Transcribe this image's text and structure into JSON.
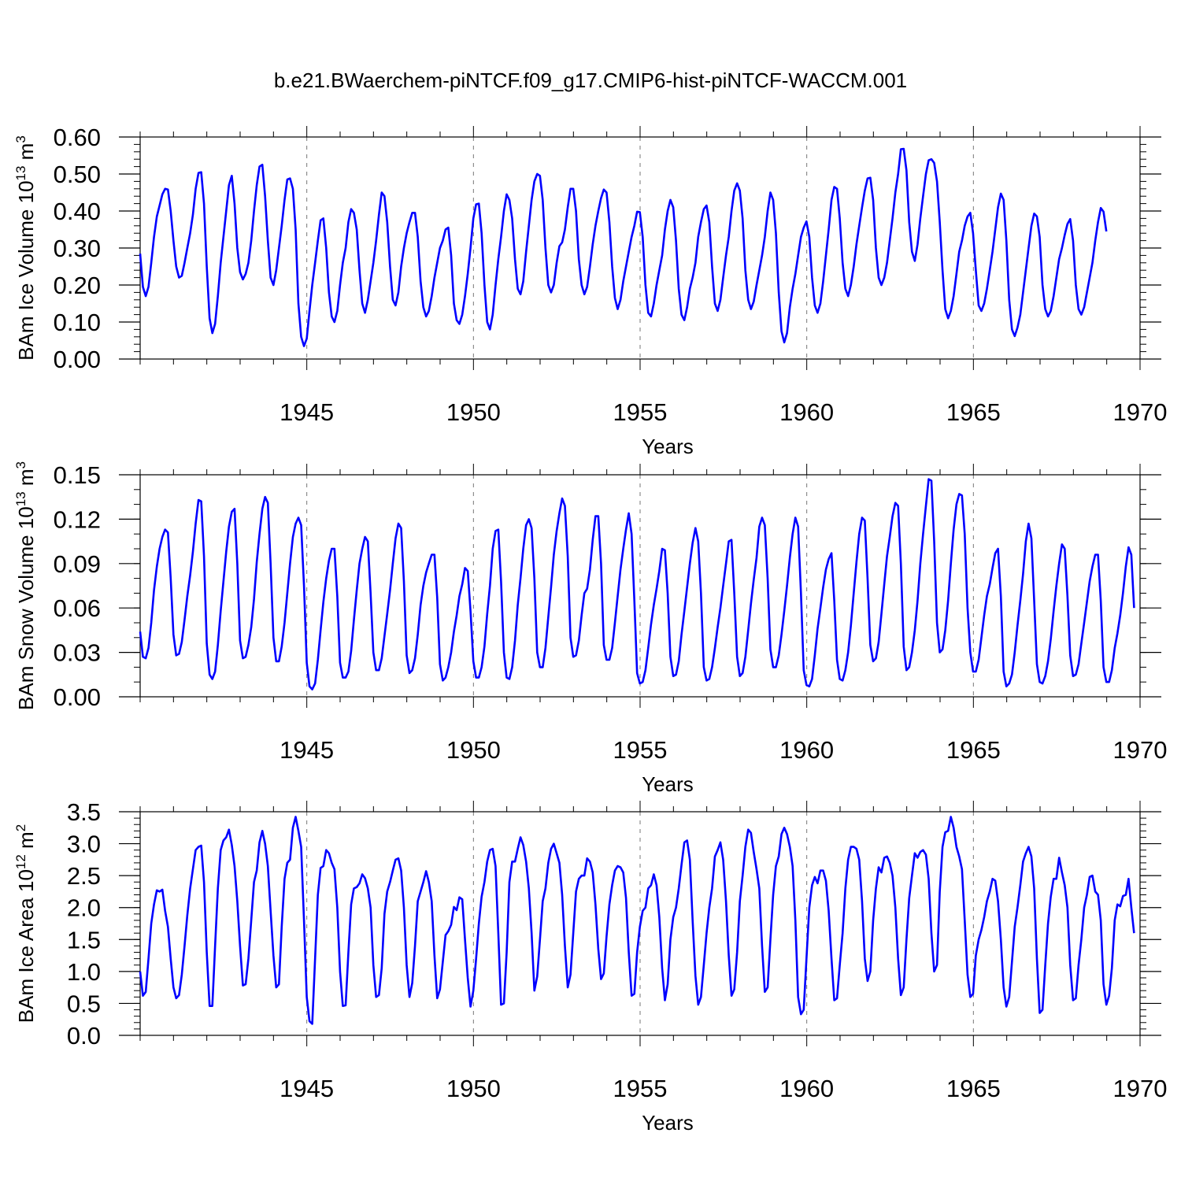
{
  "title": "b.e21.BWaerchem-piNTCF.f09_g17.CMIP6-hist-piNTCF-WACCM.001",
  "series_color": "#0000ff",
  "chart_data": [
    {
      "type": "line",
      "ylabel_main": "BAm Ice Volume 10",
      "ylabel_exp": "13",
      "ylabel_unit": "m",
      "ylabel_unit_exp": "3",
      "xlabel": "Years",
      "xlim": [
        1940.0,
        1970.0
      ],
      "ylim": [
        0.0,
        0.6
      ],
      "yticks": [
        "0.00",
        "0.10",
        "0.20",
        "0.30",
        "0.40",
        "0.50",
        "0.60"
      ],
      "yminor": 0.02,
      "xticks": [
        "1945",
        "1950",
        "1955",
        "1960",
        "1965",
        "1970"
      ],
      "grid_x": [
        1945,
        1950,
        1955,
        1960,
        1965
      ],
      "x_start": 1940.0,
      "x_step": 0.0833,
      "values": [
        0.285,
        0.195,
        0.17,
        0.195,
        0.26,
        0.33,
        0.385,
        0.415,
        0.445,
        0.46,
        0.458,
        0.4,
        0.32,
        0.25,
        0.22,
        0.225,
        0.26,
        0.3,
        0.34,
        0.39,
        0.46,
        0.503,
        0.505,
        0.42,
        0.25,
        0.11,
        0.07,
        0.095,
        0.17,
        0.26,
        0.33,
        0.4,
        0.47,
        0.495,
        0.42,
        0.3,
        0.235,
        0.215,
        0.23,
        0.26,
        0.32,
        0.4,
        0.47,
        0.52,
        0.525,
        0.44,
        0.32,
        0.22,
        0.2,
        0.24,
        0.3,
        0.36,
        0.43,
        0.485,
        0.488,
        0.46,
        0.35,
        0.15,
        0.06,
        0.035,
        0.055,
        0.13,
        0.2,
        0.26,
        0.32,
        0.375,
        0.38,
        0.3,
        0.18,
        0.115,
        0.1,
        0.13,
        0.2,
        0.26,
        0.3,
        0.37,
        0.405,
        0.395,
        0.35,
        0.24,
        0.15,
        0.125,
        0.16,
        0.21,
        0.26,
        0.32,
        0.39,
        0.45,
        0.44,
        0.37,
        0.25,
        0.16,
        0.145,
        0.18,
        0.25,
        0.3,
        0.34,
        0.37,
        0.395,
        0.395,
        0.33,
        0.21,
        0.14,
        0.115,
        0.13,
        0.17,
        0.22,
        0.26,
        0.3,
        0.32,
        0.35,
        0.355,
        0.28,
        0.15,
        0.105,
        0.095,
        0.12,
        0.17,
        0.23,
        0.3,
        0.38,
        0.418,
        0.42,
        0.34,
        0.2,
        0.1,
        0.08,
        0.12,
        0.2,
        0.27,
        0.33,
        0.4,
        0.445,
        0.43,
        0.38,
        0.27,
        0.19,
        0.175,
        0.21,
        0.29,
        0.36,
        0.43,
        0.48,
        0.5,
        0.495,
        0.43,
        0.3,
        0.2,
        0.18,
        0.2,
        0.26,
        0.305,
        0.315,
        0.35,
        0.41,
        0.46,
        0.46,
        0.4,
        0.27,
        0.2,
        0.175,
        0.195,
        0.25,
        0.31,
        0.36,
        0.4,
        0.435,
        0.458,
        0.45,
        0.37,
        0.25,
        0.165,
        0.135,
        0.16,
        0.21,
        0.25,
        0.29,
        0.33,
        0.36,
        0.398,
        0.397,
        0.33,
        0.2,
        0.125,
        0.115,
        0.15,
        0.2,
        0.24,
        0.28,
        0.35,
        0.4,
        0.43,
        0.41,
        0.32,
        0.19,
        0.12,
        0.105,
        0.14,
        0.19,
        0.22,
        0.26,
        0.33,
        0.37,
        0.405,
        0.415,
        0.37,
        0.25,
        0.15,
        0.13,
        0.16,
        0.22,
        0.28,
        0.33,
        0.4,
        0.455,
        0.475,
        0.455,
        0.38,
        0.24,
        0.16,
        0.135,
        0.155,
        0.2,
        0.24,
        0.28,
        0.33,
        0.4,
        0.45,
        0.43,
        0.34,
        0.18,
        0.075,
        0.045,
        0.07,
        0.14,
        0.19,
        0.23,
        0.28,
        0.33,
        0.355,
        0.372,
        0.33,
        0.22,
        0.145,
        0.125,
        0.15,
        0.21,
        0.28,
        0.35,
        0.43,
        0.465,
        0.46,
        0.38,
        0.26,
        0.19,
        0.17,
        0.2,
        0.25,
        0.31,
        0.36,
        0.41,
        0.455,
        0.488,
        0.49,
        0.43,
        0.3,
        0.22,
        0.2,
        0.22,
        0.26,
        0.32,
        0.38,
        0.45,
        0.5,
        0.567,
        0.568,
        0.51,
        0.37,
        0.29,
        0.265,
        0.31,
        0.38,
        0.44,
        0.5,
        0.537,
        0.54,
        0.53,
        0.48,
        0.37,
        0.24,
        0.135,
        0.11,
        0.13,
        0.17,
        0.23,
        0.29,
        0.32,
        0.36,
        0.385,
        0.395,
        0.34,
        0.24,
        0.145,
        0.13,
        0.15,
        0.19,
        0.24,
        0.29,
        0.35,
        0.41,
        0.447,
        0.43,
        0.32,
        0.16,
        0.08,
        0.062,
        0.085,
        0.12,
        0.18,
        0.24,
        0.3,
        0.36,
        0.393,
        0.385,
        0.33,
        0.2,
        0.135,
        0.115,
        0.13,
        0.17,
        0.22,
        0.27,
        0.3,
        0.335,
        0.365,
        0.378,
        0.32,
        0.2,
        0.135,
        0.12,
        0.14,
        0.18,
        0.22,
        0.26,
        0.32,
        0.37,
        0.408,
        0.398,
        0.345
      ]
    },
    {
      "type": "line",
      "ylabel_main": "BAm Snow Volume 10",
      "ylabel_exp": "13",
      "ylabel_unit": "m",
      "ylabel_unit_exp": "3",
      "xlabel": "Years",
      "xlim": [
        1940.0,
        1970.0
      ],
      "ylim": [
        0.0,
        0.15
      ],
      "yticks": [
        "0.00",
        "0.03",
        "0.06",
        "0.09",
        "0.12",
        "0.15"
      ],
      "yminor": 0.01,
      "xticks": [
        "1945",
        "1950",
        "1955",
        "1960",
        "1965",
        "1970"
      ],
      "grid_x": [
        1945,
        1950,
        1955,
        1960,
        1965
      ],
      "x_start": 1940.0,
      "x_step": 0.0833,
      "values": [
        0.044,
        0.027,
        0.026,
        0.033,
        0.05,
        0.072,
        0.088,
        0.1,
        0.108,
        0.113,
        0.111,
        0.08,
        0.042,
        0.028,
        0.029,
        0.037,
        0.052,
        0.068,
        0.082,
        0.098,
        0.117,
        0.133,
        0.132,
        0.095,
        0.036,
        0.015,
        0.012,
        0.017,
        0.035,
        0.058,
        0.078,
        0.098,
        0.115,
        0.125,
        0.127,
        0.09,
        0.038,
        0.026,
        0.027,
        0.035,
        0.047,
        0.066,
        0.091,
        0.11,
        0.127,
        0.135,
        0.131,
        0.09,
        0.04,
        0.024,
        0.024,
        0.034,
        0.05,
        0.07,
        0.09,
        0.108,
        0.117,
        0.121,
        0.116,
        0.075,
        0.023,
        0.007,
        0.005,
        0.009,
        0.025,
        0.045,
        0.064,
        0.08,
        0.092,
        0.1,
        0.1,
        0.068,
        0.023,
        0.013,
        0.013,
        0.017,
        0.031,
        0.052,
        0.072,
        0.09,
        0.1,
        0.108,
        0.105,
        0.07,
        0.03,
        0.018,
        0.018,
        0.026,
        0.041,
        0.056,
        0.072,
        0.09,
        0.107,
        0.117,
        0.114,
        0.078,
        0.028,
        0.016,
        0.018,
        0.026,
        0.042,
        0.062,
        0.075,
        0.084,
        0.09,
        0.096,
        0.096,
        0.067,
        0.022,
        0.011,
        0.013,
        0.02,
        0.03,
        0.044,
        0.055,
        0.068,
        0.076,
        0.087,
        0.085,
        0.058,
        0.024,
        0.013,
        0.013,
        0.02,
        0.034,
        0.056,
        0.075,
        0.1,
        0.112,
        0.113,
        0.078,
        0.03,
        0.013,
        0.012,
        0.02,
        0.038,
        0.062,
        0.08,
        0.1,
        0.116,
        0.12,
        0.114,
        0.08,
        0.03,
        0.02,
        0.02,
        0.033,
        0.054,
        0.074,
        0.096,
        0.112,
        0.124,
        0.134,
        0.129,
        0.095,
        0.04,
        0.027,
        0.028,
        0.038,
        0.055,
        0.07,
        0.073,
        0.086,
        0.106,
        0.122,
        0.122,
        0.09,
        0.035,
        0.025,
        0.025,
        0.033,
        0.05,
        0.068,
        0.086,
        0.1,
        0.113,
        0.124,
        0.11,
        0.065,
        0.016,
        0.009,
        0.01,
        0.018,
        0.033,
        0.049,
        0.062,
        0.073,
        0.085,
        0.1,
        0.099,
        0.07,
        0.027,
        0.014,
        0.015,
        0.024,
        0.042,
        0.058,
        0.074,
        0.09,
        0.104,
        0.114,
        0.105,
        0.07,
        0.02,
        0.011,
        0.012,
        0.02,
        0.033,
        0.047,
        0.06,
        0.075,
        0.09,
        0.105,
        0.106,
        0.07,
        0.027,
        0.014,
        0.016,
        0.027,
        0.045,
        0.063,
        0.079,
        0.094,
        0.115,
        0.121,
        0.116,
        0.08,
        0.032,
        0.02,
        0.02,
        0.028,
        0.042,
        0.058,
        0.075,
        0.094,
        0.11,
        0.121,
        0.115,
        0.07,
        0.018,
        0.008,
        0.007,
        0.012,
        0.028,
        0.046,
        0.06,
        0.074,
        0.086,
        0.093,
        0.097,
        0.065,
        0.025,
        0.012,
        0.011,
        0.018,
        0.03,
        0.048,
        0.07,
        0.091,
        0.11,
        0.121,
        0.119,
        0.08,
        0.035,
        0.024,
        0.026,
        0.037,
        0.056,
        0.076,
        0.095,
        0.108,
        0.122,
        0.131,
        0.129,
        0.09,
        0.034,
        0.018,
        0.02,
        0.03,
        0.045,
        0.065,
        0.09,
        0.11,
        0.129,
        0.147,
        0.146,
        0.105,
        0.05,
        0.03,
        0.032,
        0.045,
        0.065,
        0.09,
        0.113,
        0.13,
        0.137,
        0.136,
        0.11,
        0.06,
        0.03,
        0.017,
        0.017,
        0.025,
        0.04,
        0.055,
        0.068,
        0.076,
        0.087,
        0.097,
        0.1,
        0.068,
        0.017,
        0.007,
        0.009,
        0.015,
        0.03,
        0.048,
        0.065,
        0.083,
        0.105,
        0.117,
        0.107,
        0.065,
        0.022,
        0.01,
        0.009,
        0.014,
        0.024,
        0.039,
        0.058,
        0.075,
        0.09,
        0.103,
        0.1,
        0.068,
        0.028,
        0.014,
        0.015,
        0.022,
        0.036,
        0.05,
        0.064,
        0.078,
        0.088,
        0.096,
        0.096,
        0.065,
        0.02,
        0.01,
        0.01,
        0.018,
        0.033,
        0.043,
        0.055,
        0.07,
        0.088,
        0.101,
        0.096,
        0.06
      ]
    },
    {
      "type": "line",
      "ylabel_main": "BAm Ice Area 10",
      "ylabel_exp": "12",
      "ylabel_unit": "m",
      "ylabel_unit_exp": "2",
      "xlabel": "Years",
      "xlim": [
        1940.0,
        1970.0
      ],
      "ylim": [
        0.0,
        3.5
      ],
      "yticks": [
        "0.0",
        "0.5",
        "1.0",
        "1.5",
        "2.0",
        "2.5",
        "3.0",
        "3.5"
      ],
      "yminor": 0.1,
      "xticks": [
        "1945",
        "1950",
        "1955",
        "1960",
        "1965",
        "1970"
      ],
      "grid_x": [
        1945,
        1950,
        1955,
        1960,
        1965
      ],
      "x_start": 1940.0,
      "x_step": 0.0833,
      "values": [
        1.0,
        0.62,
        0.68,
        1.2,
        1.75,
        2.05,
        2.27,
        2.25,
        2.28,
        1.95,
        1.7,
        1.2,
        0.75,
        0.58,
        0.63,
        0.95,
        1.4,
        1.88,
        2.3,
        2.6,
        2.9,
        2.95,
        2.97,
        2.4,
        1.3,
        0.46,
        0.46,
        1.4,
        2.3,
        2.9,
        3.05,
        3.1,
        3.22,
        2.98,
        2.65,
        2.1,
        1.4,
        0.78,
        0.8,
        1.2,
        1.8,
        2.4,
        2.58,
        3.02,
        3.2,
        3.0,
        2.65,
        1.95,
        1.25,
        0.75,
        0.8,
        1.7,
        2.45,
        2.7,
        2.75,
        3.25,
        3.42,
        3.2,
        2.95,
        1.8,
        0.6,
        0.22,
        0.18,
        1.2,
        2.2,
        2.62,
        2.65,
        2.9,
        2.85,
        2.7,
        2.6,
        2.0,
        1.0,
        0.46,
        0.47,
        1.3,
        2.05,
        2.3,
        2.32,
        2.38,
        2.52,
        2.46,
        2.3,
        2.0,
        1.1,
        0.6,
        0.63,
        1.05,
        1.9,
        2.25,
        2.4,
        2.58,
        2.75,
        2.77,
        2.58,
        2.0,
        1.1,
        0.6,
        0.82,
        1.4,
        2.1,
        2.25,
        2.4,
        2.57,
        2.4,
        2.1,
        1.25,
        0.58,
        0.72,
        1.15,
        1.57,
        1.63,
        1.73,
        2.01,
        1.96,
        2.16,
        2.13,
        1.5,
        0.9,
        0.45,
        0.7,
        1.2,
        1.75,
        2.17,
        2.4,
        2.72,
        2.9,
        2.92,
        2.65,
        1.6,
        0.48,
        0.5,
        1.3,
        2.4,
        2.72,
        2.72,
        2.92,
        3.1,
        2.98,
        2.72,
        2.3,
        1.6,
        0.7,
        0.92,
        1.5,
        2.1,
        2.3,
        2.7,
        2.92,
        3.0,
        2.85,
        2.7,
        2.2,
        1.4,
        0.75,
        0.95,
        1.6,
        2.25,
        2.45,
        2.5,
        2.5,
        2.77,
        2.72,
        2.55,
        2.05,
        1.35,
        0.88,
        0.97,
        1.55,
        2.05,
        2.35,
        2.58,
        2.65,
        2.63,
        2.55,
        2.15,
        1.3,
        0.62,
        0.65,
        1.3,
        1.7,
        1.95,
        2.0,
        2.3,
        2.35,
        2.52,
        2.35,
        1.85,
        1.05,
        0.55,
        0.8,
        1.5,
        1.85,
        2.0,
        2.3,
        2.67,
        3.02,
        3.05,
        2.75,
        1.8,
        0.93,
        0.48,
        0.6,
        1.1,
        1.6,
        2.0,
        2.3,
        2.8,
        2.9,
        3.02,
        2.75,
        2.1,
        1.25,
        0.62,
        0.72,
        1.3,
        2.1,
        2.5,
        2.95,
        3.22,
        3.17,
        2.87,
        2.6,
        2.3,
        1.4,
        0.68,
        0.75,
        1.5,
        2.2,
        2.65,
        2.8,
        3.15,
        3.25,
        3.15,
        2.95,
        2.65,
        1.8,
        0.6,
        0.33,
        0.4,
        1.2,
        2.0,
        2.35,
        2.48,
        2.38,
        2.58,
        2.58,
        2.42,
        1.95,
        1.2,
        0.55,
        0.58,
        1.1,
        1.6,
        2.3,
        2.75,
        2.95,
        2.95,
        2.92,
        2.75,
        2.1,
        1.2,
        0.85,
        1.0,
        1.8,
        2.3,
        2.63,
        2.55,
        2.78,
        2.8,
        2.7,
        2.5,
        2.0,
        1.2,
        0.63,
        0.75,
        1.5,
        2.15,
        2.5,
        2.85,
        2.78,
        2.87,
        2.9,
        2.83,
        2.45,
        1.6,
        1.0,
        1.1,
        2.25,
        2.95,
        3.18,
        3.2,
        3.42,
        3.25,
        2.95,
        2.8,
        2.6,
        1.8,
        0.95,
        0.6,
        0.65,
        1.25,
        1.5,
        1.65,
        1.85,
        2.1,
        2.25,
        2.45,
        2.42,
        2.1,
        1.5,
        0.75,
        0.45,
        0.6,
        1.15,
        1.7,
        2.0,
        2.35,
        2.72,
        2.85,
        2.95,
        2.8,
        2.3,
        1.2,
        0.35,
        0.4,
        1.1,
        1.75,
        2.17,
        2.45,
        2.45,
        2.78,
        2.55,
        2.35,
        2.0,
        1.1,
        0.55,
        0.58,
        1.1,
        1.5,
        2.0,
        2.2,
        2.48,
        2.5,
        2.25,
        2.2,
        1.8,
        0.8,
        0.48,
        0.62,
        1.05,
        1.8,
        2.05,
        2.02,
        2.18,
        2.2,
        2.45,
        2.0,
        1.6
      ]
    }
  ]
}
